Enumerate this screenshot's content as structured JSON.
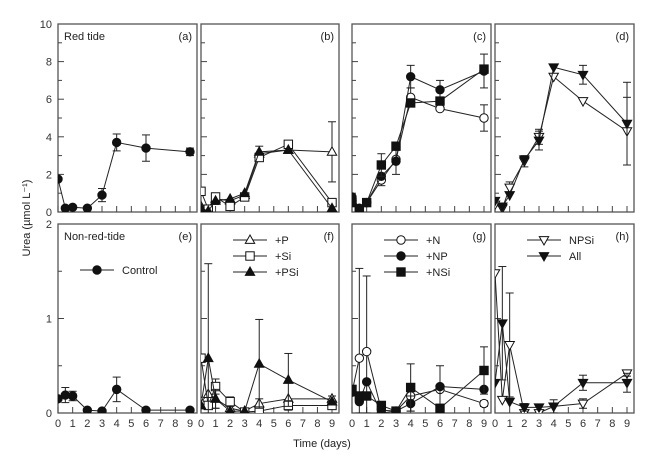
{
  "chart_data": {
    "type": "line",
    "ylabel": "Urea (µmol L⁻¹)",
    "xlabel": "Time (days)",
    "x": [
      0,
      0.5,
      1,
      2,
      3,
      4,
      6,
      9
    ],
    "xticks": [
      "0",
      "1",
      "2",
      "3",
      "4",
      "5",
      "6",
      "7",
      "8",
      "9"
    ],
    "rows": [
      {
        "name": "Red tide",
        "ylim": [
          0,
          10
        ],
        "yticks": [
          "0",
          "2",
          "4",
          "6",
          "8",
          "10"
        ],
        "yminor": [
          1,
          3,
          5,
          7,
          9
        ]
      },
      {
        "name": "Non-red-tide",
        "ylim": [
          0,
          2
        ],
        "yticks": [
          "0",
          "1",
          "2"
        ],
        "yminor": [
          0.5,
          1.5
        ]
      }
    ],
    "panels": [
      {
        "tag": "(a)",
        "row": 0,
        "col": 0,
        "label": "Red tide",
        "series": [
          {
            "name": "Control",
            "marker": "circle-filled",
            "values": [
              1.75,
              0.2,
              0.25,
              0.2,
              0.9,
              3.7,
              3.4,
              3.2
            ],
            "err": [
              0,
              0,
              0,
              0,
              0.35,
              0.45,
              0.7,
              0.2
            ]
          }
        ]
      },
      {
        "tag": "(b)",
        "row": 0,
        "col": 1,
        "series": [
          {
            "name": "+P",
            "marker": "triangle-open",
            "values": [
              0.3,
              0.1,
              0.7,
              0.6,
              0.9,
              3.1,
              3.3,
              3.2
            ],
            "err": [
              0,
              0,
              0.3,
              0,
              0,
              0.4,
              0,
              1.6
            ]
          },
          {
            "name": "+Si",
            "marker": "square-open",
            "values": [
              1.1,
              0.15,
              0.8,
              0.3,
              0.8,
              2.9,
              3.6,
              0.5
            ],
            "err": [
              0,
              0,
              0,
              0,
              0,
              0,
              0,
              0
            ]
          },
          {
            "name": "+PSi",
            "marker": "triangle-filled",
            "values": [
              0.2,
              0.05,
              0.6,
              0.7,
              1.0,
              3.2,
              3.3,
              0.2
            ],
            "err": [
              0,
              0,
              0,
              0,
              0,
              0,
              0,
              0
            ]
          }
        ]
      },
      {
        "tag": "(c)",
        "row": 0,
        "col": 2,
        "series": [
          {
            "name": "+N",
            "marker": "circle-open",
            "values": [
              0.6,
              0.1,
              0.5,
              1.7,
              2.8,
              6.1,
              5.5,
              5.0
            ],
            "err": [
              0,
              0,
              0,
              0.3,
              0,
              0.5,
              0,
              0.7
            ]
          },
          {
            "name": "+NP",
            "marker": "circle-filled",
            "values": [
              0.8,
              0.2,
              0.5,
              1.9,
              2.7,
              7.2,
              6.5,
              7.5
            ],
            "err": [
              0,
              0,
              0,
              0,
              0.7,
              0.6,
              0.5,
              0.9
            ]
          },
          {
            "name": "+NSi",
            "marker": "square-filled",
            "values": [
              0.5,
              0.15,
              0.5,
              2.5,
              3.5,
              5.8,
              5.9,
              7.6
            ],
            "err": [
              0,
              0,
              0,
              0.6,
              0,
              0,
              0,
              0
            ]
          }
        ]
      },
      {
        "tag": "(d)",
        "row": 0,
        "col": 3,
        "series": [
          {
            "name": "NPSi",
            "marker": "triangle-down-open",
            "values": [
              0.4,
              0.2,
              1.3,
              2.7,
              4.0,
              7.2,
              5.9,
              4.3
            ],
            "err": [
              0,
              0,
              0.3,
              0.3,
              0.4,
              0,
              0,
              1.8
            ]
          },
          {
            "name": "All",
            "marker": "triangle-down-filled",
            "values": [
              0.6,
              0.3,
              0.9,
              2.8,
              3.8,
              7.7,
              7.3,
              4.7
            ],
            "err": [
              0,
              0,
              0,
              0,
              0.5,
              0,
              0.5,
              2.2
            ]
          }
        ]
      },
      {
        "tag": "(e)",
        "row": 1,
        "col": 0,
        "label": "Non-red-tide",
        "legend": [
          {
            "name": "Control",
            "marker": "circle-filled"
          }
        ],
        "series": [
          {
            "name": "Control",
            "marker": "circle-filled",
            "values": [
              0.15,
              0.19,
              0.18,
              0.03,
              0.02,
              0.25,
              0.03,
              0.03
            ],
            "err": [
              0,
              0.08,
              0.05,
              0,
              0,
              0.13,
              0,
              0
            ]
          }
        ]
      },
      {
        "tag": "(f)",
        "row": 1,
        "col": 1,
        "legend": [
          {
            "name": "+P",
            "marker": "triangle-open"
          },
          {
            "name": "+Si",
            "marker": "square-open"
          },
          {
            "name": "+PSi",
            "marker": "triangle-filled"
          }
        ],
        "series": [
          {
            "name": "+P",
            "marker": "triangle-open",
            "values": [
              0.12,
              0.2,
              0.15,
              0.05,
              0.02,
              0.1,
              0.15,
              0.15
            ],
            "err": [
              0,
              0,
              0.1,
              0,
              0,
              0.05,
              0,
              0.03
            ]
          },
          {
            "name": "+Si",
            "marker": "square-open",
            "values": [
              0.58,
              0.08,
              0.28,
              0.12,
              0.01,
              0.02,
              0.08,
              0.08
            ],
            "err": [
              0,
              0,
              0.08,
              0.05,
              0,
              0,
              0.05,
              0
            ]
          },
          {
            "name": "+PSi",
            "marker": "triangle-filled",
            "values": [
              0.08,
              0.58,
              0.15,
              0.02,
              0.02,
              0.52,
              0.35,
              0.12
            ],
            "err": [
              0,
              1.0,
              0.1,
              0,
              0,
              0.47,
              0.28,
              0
            ]
          }
        ]
      },
      {
        "tag": "(g)",
        "row": 1,
        "col": 2,
        "legend": [
          {
            "name": "+N",
            "marker": "circle-open"
          },
          {
            "name": "+NP",
            "marker": "circle-filled"
          },
          {
            "name": "+NSi",
            "marker": "square-filled"
          }
        ],
        "series": [
          {
            "name": "+N",
            "marker": "circle-open",
            "values": [
              0.22,
              0.58,
              0.65,
              0.03,
              0.02,
              0.18,
              0.25,
              0.1
            ],
            "err": [
              0,
              0.95,
              0.8,
              0,
              0,
              0.1,
              0,
              0.03
            ]
          },
          {
            "name": "+NP",
            "marker": "circle-filled",
            "values": [
              0.22,
              0.12,
              0.33,
              0.0,
              0.02,
              0.1,
              0.28,
              0.25
            ],
            "err": [
              0,
              0,
              0,
              0,
              0,
              0.08,
              0.22,
              0
            ]
          },
          {
            "name": "+NSi",
            "marker": "square-filled",
            "values": [
              0.25,
              0.18,
              0.18,
              0.08,
              0.02,
              0.27,
              0.05,
              0.45
            ],
            "err": [
              0,
              0,
              0,
              0,
              0,
              0.25,
              0,
              0.25
            ]
          }
        ]
      },
      {
        "tag": "(h)",
        "row": 1,
        "col": 3,
        "legend": [
          {
            "name": "NPSi",
            "marker": "triangle-down-open"
          },
          {
            "name": "All",
            "marker": "triangle-down-filled"
          }
        ],
        "series": [
          {
            "name": "NPSi",
            "marker": "triangle-down-open",
            "values": [
              1.48,
              0.14,
              0.72,
              0.0,
              0.0,
              0.07,
              0.1,
              0.42
            ],
            "err": [
              0,
              0,
              0.55,
              0,
              0,
              0.07,
              0.05,
              0.03
            ]
          },
          {
            "name": "All",
            "marker": "triangle-down-filled",
            "values": [
              0.32,
              0.95,
              0.12,
              0.06,
              0.06,
              0.07,
              0.32,
              0.32
            ],
            "err": [
              0,
              0.6,
              0,
              0.04,
              0,
              0,
              0.08,
              0.1
            ]
          }
        ]
      }
    ]
  }
}
